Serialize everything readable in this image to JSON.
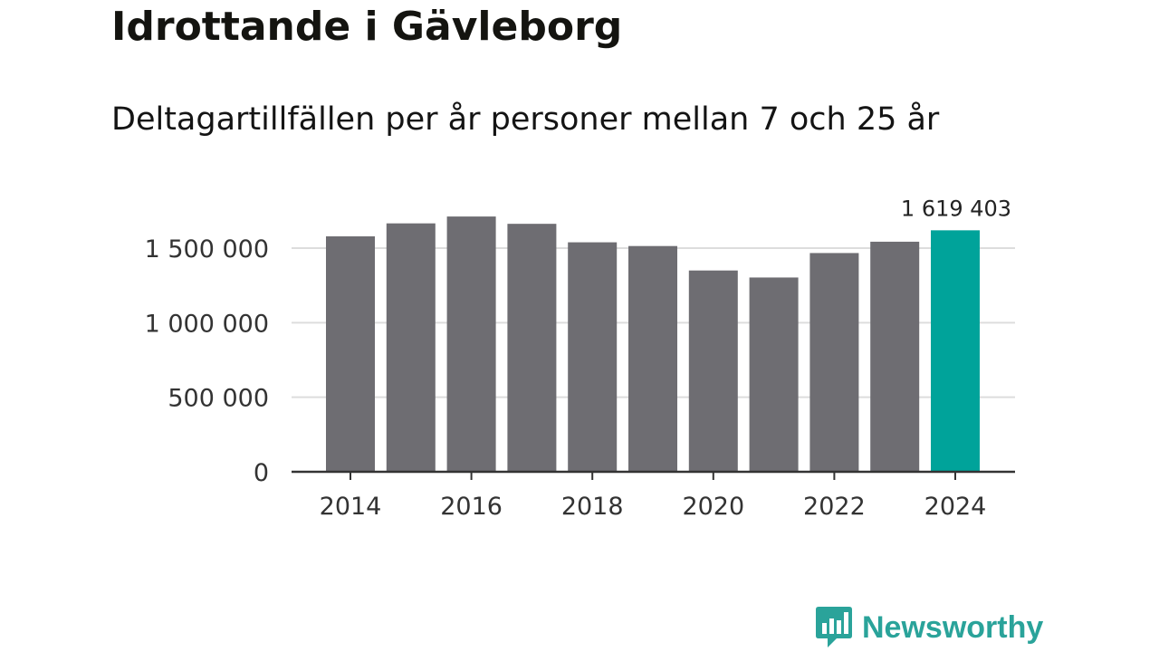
{
  "title": "Idrottande i Gävleborg",
  "subtitle": "Deltagartillfällen per år personer mellan 7 och 25 år",
  "brand": {
    "name": "Newsworthy",
    "color": "#2aa39a",
    "icon": "newsworthy-logo-icon"
  },
  "colors": {
    "bar": "#6e6d72",
    "highlight": "#00a39a",
    "grid": "#dddddd",
    "axis": "#333333"
  },
  "chart_data": {
    "type": "bar",
    "categories": [
      "2014",
      "2015",
      "2016",
      "2017",
      "2018",
      "2019",
      "2020",
      "2021",
      "2022",
      "2023",
      "2024"
    ],
    "values": [
      1579000,
      1666000,
      1712000,
      1663000,
      1539000,
      1514000,
      1350000,
      1303000,
      1467000,
      1543000,
      1619403
    ],
    "highlight_index": 10,
    "data_labels": [
      {
        "index": 10,
        "text": "1 619 403"
      }
    ],
    "x_tick_labels": [
      "2014",
      "2016",
      "2018",
      "2020",
      "2022",
      "2024"
    ],
    "y_ticks": [
      0,
      500000,
      1000000,
      1500000
    ],
    "y_tick_labels": [
      "0",
      "500 000",
      "1 000 000",
      "1 500 000"
    ],
    "ylim": [
      0,
      1650000
    ],
    "grid": true,
    "legend": "none"
  }
}
